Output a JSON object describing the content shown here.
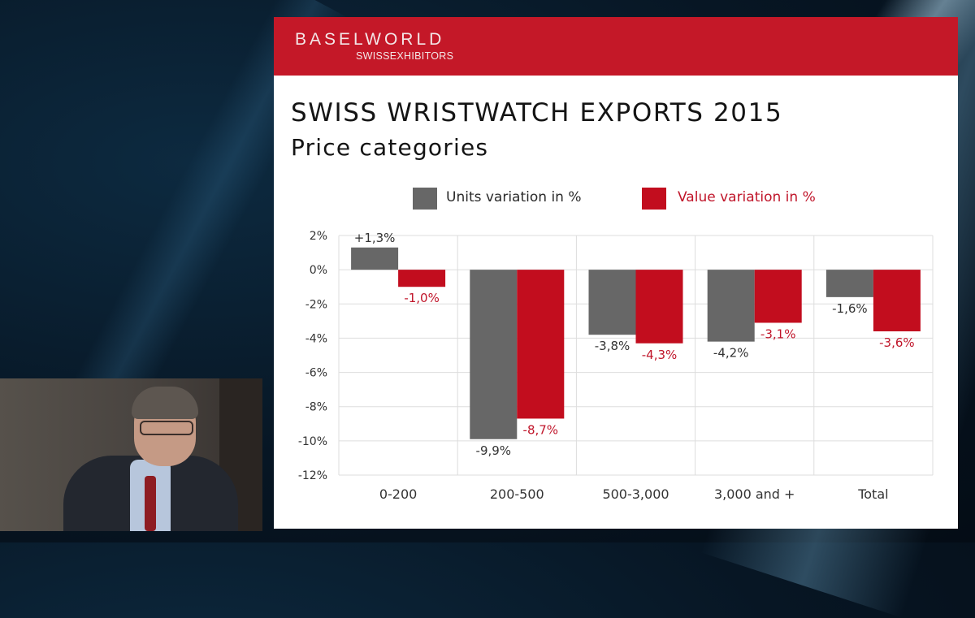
{
  "banner": {
    "brand": "BASELWORLD",
    "sub": "SWISSEXHIBITORS"
  },
  "slide": {
    "title": "SWISS WRISTWATCH EXPORTS 2015",
    "subtitle": "Price categories"
  },
  "colors": {
    "banner_red": "#c41828",
    "units_gray": "#676767",
    "value_red": "#c20d1e",
    "value_label": "#c0152a"
  },
  "chart_data": {
    "type": "bar",
    "categories": [
      "0-200",
      "200-500",
      "500-3,000",
      "3,000 and +",
      "Total"
    ],
    "series": [
      {
        "name": "Units variation in %",
        "values": [
          1.3,
          -9.9,
          -3.8,
          -4.2,
          -1.6
        ],
        "labels": [
          "+1,3%",
          "-9,9%",
          "-3,8%",
          "-4,2%",
          "-1,6%"
        ]
      },
      {
        "name": "Value variation in %",
        "values": [
          -1.0,
          -8.7,
          -4.3,
          -3.1,
          -3.6
        ],
        "labels": [
          "-1,0%",
          "-8,7%",
          "-4,3%",
          "-3,1%",
          "-3,6%"
        ]
      }
    ],
    "ylim": [
      -12,
      2
    ],
    "yticks": [
      2,
      0,
      -2,
      -4,
      -6,
      -8,
      -10,
      -12
    ],
    "ytick_labels": [
      "2%",
      "0%",
      "-2%",
      "-4%",
      "-6%",
      "-8%",
      "-10%",
      "-12%"
    ],
    "grid": true,
    "legend_position": "top"
  }
}
